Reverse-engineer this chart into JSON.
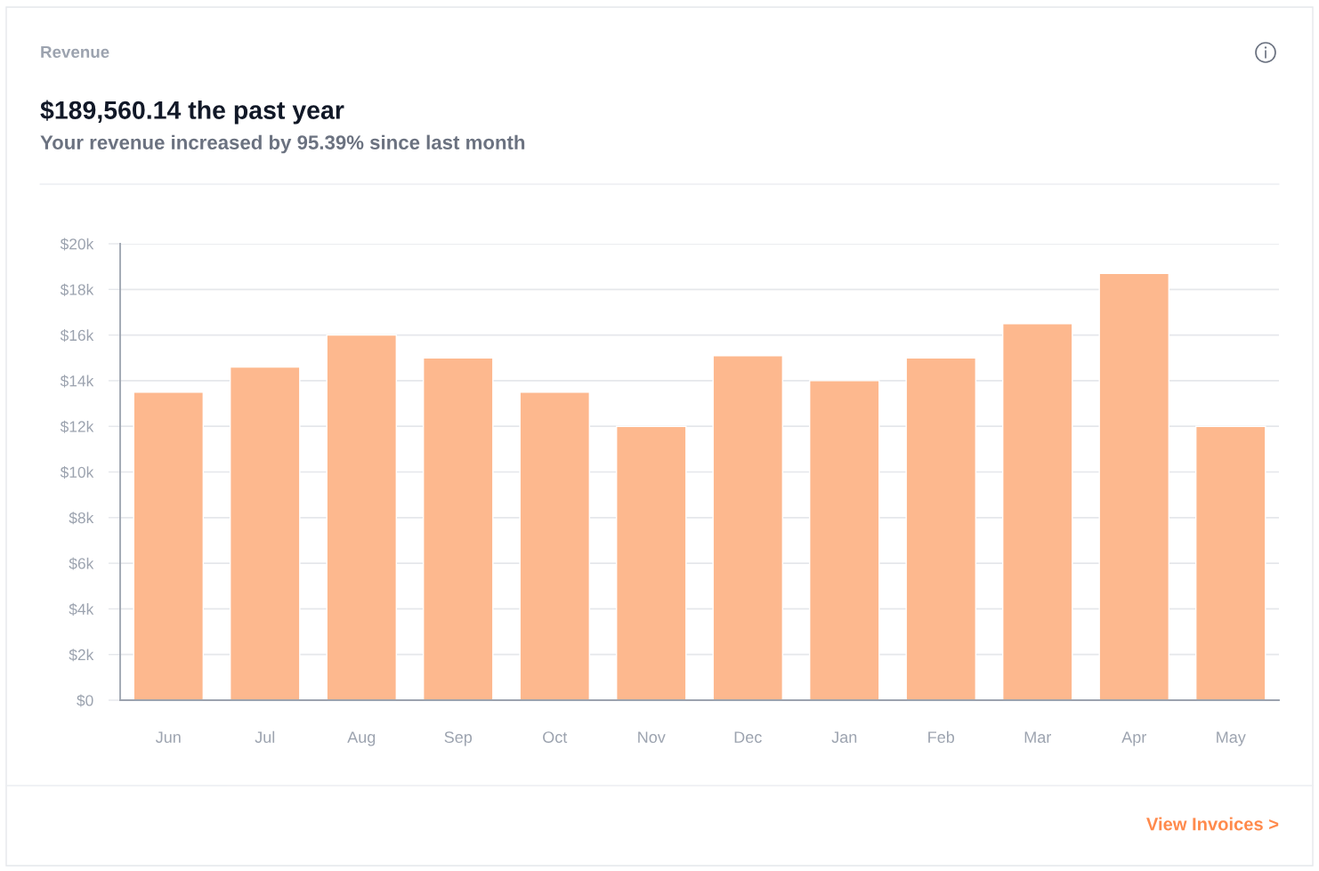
{
  "chart_data": {
    "type": "bar",
    "title": "Revenue",
    "subtitle": "$189,560.14 the past year",
    "annotations": [
      "Your revenue increased by 95.39% since last month",
      "View Invoices >"
    ],
    "categories": [
      "Jun",
      "Jul",
      "Aug",
      "Sep",
      "Oct",
      "Nov",
      "Dec",
      "Jan",
      "Feb",
      "Mar",
      "Apr",
      "May"
    ],
    "values": [
      13500,
      14600,
      16000,
      15000,
      13500,
      12000,
      15100,
      14000,
      15000,
      16500,
      18700,
      12000
    ],
    "color": "#fdb88e",
    "ylim": [
      0,
      20000
    ],
    "yticks": [
      {
        "value": 0,
        "label": "$0"
      },
      {
        "value": 2000,
        "label": "$2k"
      },
      {
        "value": 4000,
        "label": "$4k"
      },
      {
        "value": 6000,
        "label": "$6k"
      },
      {
        "value": 8000,
        "label": "$8k"
      },
      {
        "value": 10000,
        "label": "$10k"
      },
      {
        "value": 12000,
        "label": "$12k"
      },
      {
        "value": 14000,
        "label": "$14k"
      },
      {
        "value": 16000,
        "label": "$16k"
      },
      {
        "value": 18000,
        "label": "$18k"
      },
      {
        "value": 20000,
        "label": "$20k"
      }
    ],
    "grid": "y"
  }
}
